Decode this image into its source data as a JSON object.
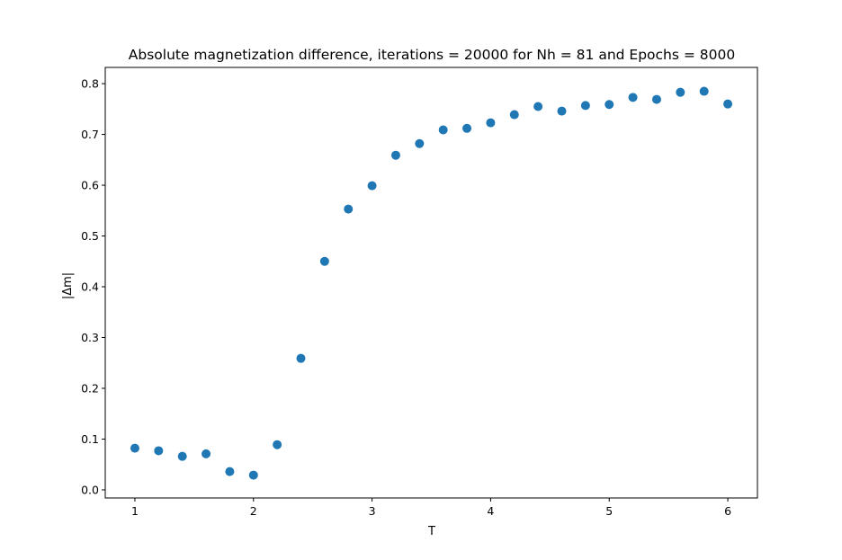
{
  "chart_data": {
    "type": "scatter",
    "title": "Absolute magnetization difference, iterations = 20000 for Nh = 81 and Epochs = 8000",
    "xlabel": "T",
    "ylabel": "|Δm|",
    "xlim": [
      0.75,
      6.25
    ],
    "ylim": [
      -0.016,
      0.832
    ],
    "xticks": [
      1,
      2,
      3,
      4,
      5,
      6
    ],
    "xtick_labels": [
      "1",
      "2",
      "3",
      "4",
      "5",
      "6"
    ],
    "yticks": [
      0.0,
      0.1,
      0.2,
      0.3,
      0.4,
      0.5,
      0.6,
      0.7,
      0.8
    ],
    "ytick_labels": [
      "0.0",
      "0.1",
      "0.2",
      "0.3",
      "0.4",
      "0.5",
      "0.6",
      "0.7",
      "0.8"
    ],
    "grid": false,
    "legend": "none",
    "marker_color": "#1f77b4",
    "series": [
      {
        "x": [
          1.0,
          1.2,
          1.4,
          1.6,
          1.8,
          2.0,
          2.2,
          2.4,
          2.6,
          2.8,
          3.0,
          3.2,
          3.4,
          3.6,
          3.8,
          4.0,
          4.2,
          4.4,
          4.6,
          4.8,
          5.0,
          5.2,
          5.4,
          5.6,
          5.8,
          6.0
        ],
        "values": [
          0.082,
          0.077,
          0.066,
          0.071,
          0.036,
          0.029,
          0.089,
          0.259,
          0.45,
          0.553,
          0.599,
          0.659,
          0.682,
          0.709,
          0.712,
          0.723,
          0.739,
          0.755,
          0.746,
          0.757,
          0.759,
          0.773,
          0.769,
          0.783,
          0.785,
          0.76
        ]
      }
    ]
  }
}
